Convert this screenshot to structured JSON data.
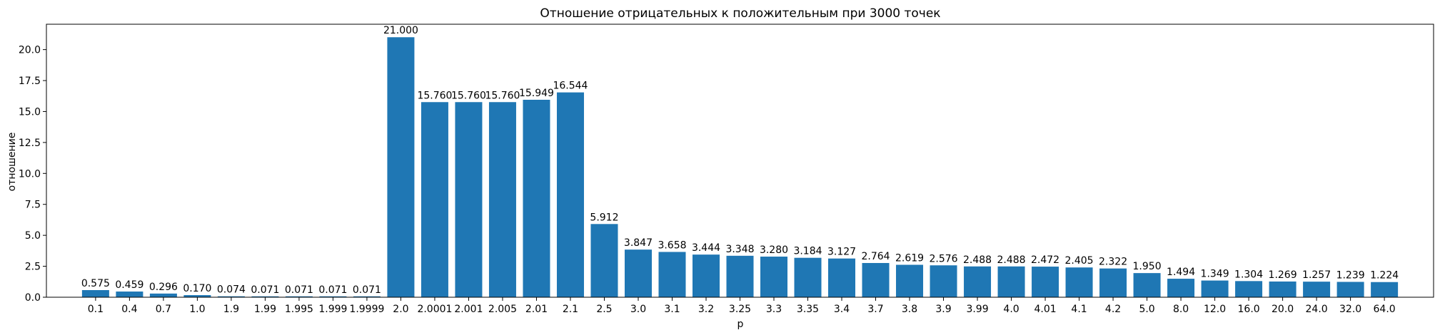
{
  "chart_data": {
    "type": "bar",
    "title": "Отношение отрицательных к положительным при 3000 точек",
    "xlabel": "p",
    "ylabel": "отношение",
    "categories": [
      "0.1",
      "0.4",
      "0.7",
      "1.0",
      "1.9",
      "1.99",
      "1.995",
      "1.999",
      "1.9999",
      "2.0",
      "2.0001",
      "2.001",
      "2.005",
      "2.01",
      "2.1",
      "2.5",
      "3.0",
      "3.1",
      "3.2",
      "3.25",
      "3.3",
      "3.35",
      "3.4",
      "3.7",
      "3.8",
      "3.9",
      "3.99",
      "4.0",
      "4.01",
      "4.1",
      "4.2",
      "5.0",
      "8.0",
      "12.0",
      "16.0",
      "20.0",
      "24.0",
      "32.0",
      "64.0"
    ],
    "values": [
      0.575,
      0.459,
      0.296,
      0.17,
      0.074,
      0.071,
      0.071,
      0.071,
      0.071,
      21.0,
      15.76,
      15.76,
      15.76,
      15.949,
      16.544,
      5.912,
      3.847,
      3.658,
      3.444,
      3.348,
      3.28,
      3.184,
      3.127,
      2.764,
      2.619,
      2.576,
      2.488,
      2.488,
      2.472,
      2.405,
      2.322,
      1.95,
      1.494,
      1.349,
      1.304,
      1.269,
      1.257,
      1.239,
      1.224
    ],
    "data_labels": [
      "0.575",
      "0.459",
      "0.296",
      "0.170",
      "0.074",
      "0.071",
      "0.071",
      "0.071",
      "0.071",
      "21.000",
      "15.760",
      "15.760",
      "15.760",
      "15.949",
      "16.544",
      "5.912",
      "3.847",
      "3.658",
      "3.444",
      "3.348",
      "3.280",
      "3.184",
      "3.127",
      "2.764",
      "2.619",
      "2.576",
      "2.488",
      "2.488",
      "2.472",
      "2.405",
      "2.322",
      "1.950",
      "1.494",
      "1.349",
      "1.304",
      "1.269",
      "1.257",
      "1.239",
      "1.224"
    ],
    "ylim": [
      0,
      22.05
    ],
    "yticks": [
      0.0,
      2.5,
      5.0,
      7.5,
      10.0,
      12.5,
      15.0,
      17.5,
      20.0
    ],
    "ytick_labels": [
      "0.0",
      "2.5",
      "5.0",
      "7.5",
      "10.0",
      "12.5",
      "15.0",
      "17.5",
      "20.0"
    ],
    "bar_color": "#1f77b4",
    "grid": false,
    "legend": "none"
  }
}
